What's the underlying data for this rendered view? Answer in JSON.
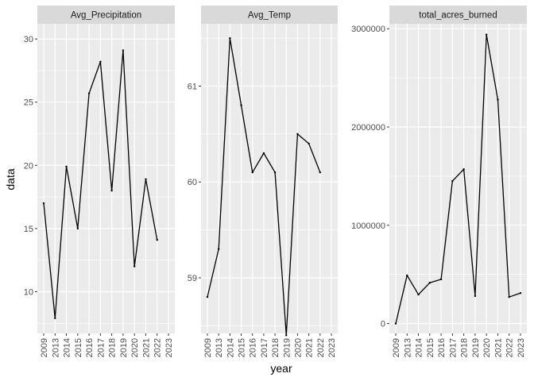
{
  "chart_data": {
    "type": "line",
    "layout": "facets-free-scales",
    "xlabel": "year",
    "ylabel": "data",
    "categories": [
      "2009",
      "2013",
      "2014",
      "2015",
      "2016",
      "2017",
      "2018",
      "2019",
      "2020",
      "2021",
      "2022",
      "2023"
    ],
    "grid": true,
    "colors": {
      "line": "#000000",
      "panel": "#ebebeb",
      "grid": "#ffffff",
      "strip": "#d9d9d9"
    },
    "panels": [
      {
        "name": "Avg_Precipitation",
        "ylim": [
          6.7,
          31.2
        ],
        "yticks": [
          10,
          15,
          20,
          25,
          30
        ],
        "ytick_labels": [
          "10",
          "15",
          "20",
          "25",
          "30"
        ],
        "values": [
          17.0,
          7.9,
          19.9,
          15.0,
          25.7,
          28.2,
          18.0,
          29.1,
          12.0,
          18.9,
          14.1,
          null
        ]
      },
      {
        "name": "Avg_Temp",
        "ylim": [
          58.42,
          61.65
        ],
        "yticks": [
          59,
          60,
          61
        ],
        "ytick_labels": [
          "59",
          "60",
          "61"
        ],
        "values": [
          58.8,
          59.3,
          61.5,
          60.8,
          60.1,
          60.3,
          60.1,
          58.4,
          60.5,
          60.4,
          60.1,
          null
        ]
      },
      {
        "name": "total_acres_burned",
        "ylim": [
          -100000,
          3050000
        ],
        "yticks": [
          0,
          1000000,
          2000000,
          3000000
        ],
        "ytick_labels": [
          "0",
          "1000000",
          "2000000",
          "3000000"
        ],
        "values": [
          0,
          490000,
          295000,
          415000,
          450000,
          1450000,
          1570000,
          280000,
          2940000,
          2280000,
          270000,
          310000
        ]
      }
    ]
  }
}
